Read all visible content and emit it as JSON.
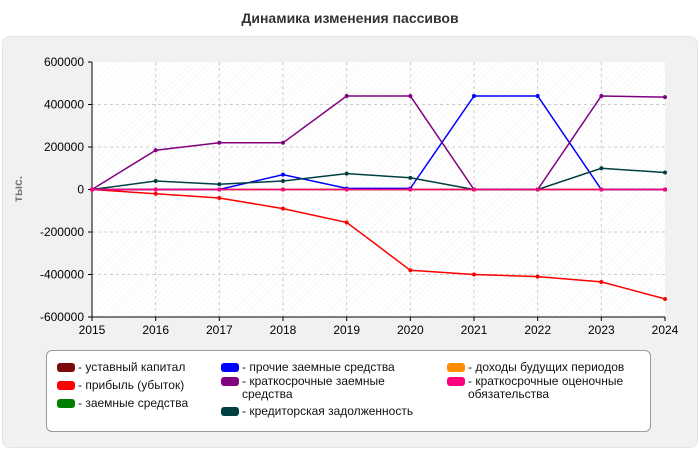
{
  "chart_data": {
    "type": "line",
    "title": "Динамика изменения пассивов",
    "xlabel": "",
    "ylabel": "тыс.",
    "x": [
      2015,
      2016,
      2017,
      2018,
      2019,
      2020,
      2021,
      2022,
      2023,
      2024
    ],
    "ylim": [
      -600000,
      600000
    ],
    "yticks": [
      "600000",
      "400000",
      "200000",
      "0",
      "-200000",
      "-400000",
      "-600000"
    ],
    "grid": true,
    "legend_position": "bottom",
    "series": [
      {
        "name": "- уставный капитал",
        "color": "#7a0a0a",
        "values": [
          0,
          0,
          0,
          0,
          0,
          0,
          0,
          0,
          0,
          0
        ]
      },
      {
        "name": "- прибыль (убыток)",
        "color": "#ff0000",
        "values": [
          0,
          -20000,
          -40000,
          -90000,
          -155000,
          -380000,
          -400000,
          -410000,
          -435000,
          -515000
        ]
      },
      {
        "name": "- заемные средства",
        "color": "#008000",
        "values": [
          0,
          0,
          0,
          0,
          0,
          0,
          0,
          0,
          0,
          0
        ]
      },
      {
        "name": "- прочие заемные средства",
        "color": "#0000ff",
        "values": [
          0,
          0,
          0,
          70000,
          5000,
          5000,
          440000,
          440000,
          0,
          0
        ]
      },
      {
        "name": "- краткосрочные заемные средства",
        "color": "#800080",
        "values": [
          0,
          185000,
          220000,
          220000,
          440000,
          440000,
          0,
          0,
          440000,
          435000
        ]
      },
      {
        "name": "- кредиторская задолженность",
        "color": "#004040",
        "values": [
          0,
          40000,
          25000,
          40000,
          75000,
          55000,
          0,
          0,
          100000,
          80000
        ]
      },
      {
        "name": "- доходы будущих периодов",
        "color": "#ff8c00",
        "values": [
          0,
          0,
          0,
          0,
          0,
          0,
          0,
          0,
          0,
          0
        ]
      },
      {
        "name": "- краткосрочные оценочные обязательства",
        "color": "#ff007f",
        "values": [
          0,
          0,
          0,
          0,
          0,
          0,
          0,
          0,
          0,
          0
        ]
      }
    ]
  }
}
